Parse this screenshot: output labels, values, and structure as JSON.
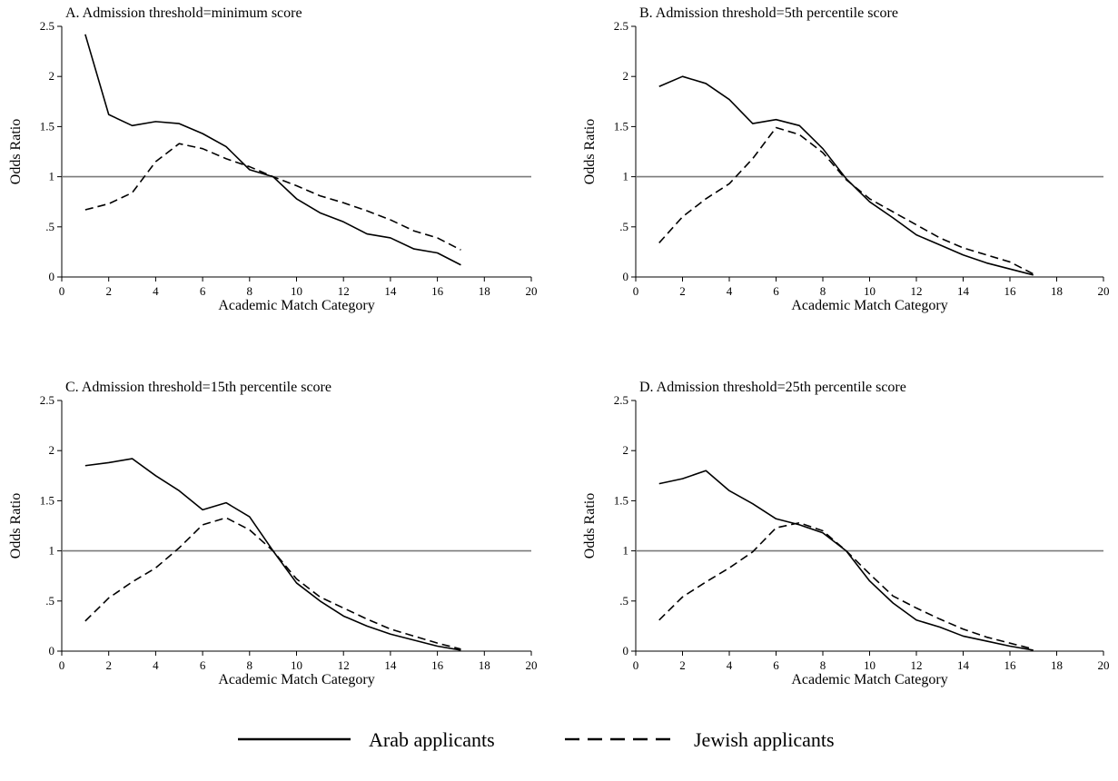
{
  "figure": {
    "legend": {
      "placement": "bottom-center",
      "items": [
        {
          "label": "Arab applicants",
          "style": "solid"
        },
        {
          "label": "Jewish applicants",
          "style": "dashed"
        }
      ]
    }
  },
  "chart_data": [
    {
      "type": "line",
      "title": "A. Admission threshold=minimum score",
      "xlabel": "Academic Match Category",
      "ylabel": "Odds Ratio",
      "xlim": [
        0,
        20
      ],
      "ylim": [
        0,
        2.5
      ],
      "xticks": [
        0,
        2,
        4,
        6,
        8,
        10,
        12,
        14,
        16,
        18,
        20
      ],
      "xtick_labels": [
        "0",
        "2",
        "4",
        "6",
        "8",
        "10",
        "12",
        "14",
        "16",
        "18",
        "20"
      ],
      "yticks": [
        0,
        0.5,
        1,
        1.5,
        2,
        2.5
      ],
      "ytick_labels": [
        "0",
        ".5",
        "1",
        "1.5",
        "2",
        "2.5"
      ],
      "reference_line": 1,
      "grid": false,
      "x": [
        1,
        2,
        3,
        4,
        5,
        6,
        7,
        8,
        9,
        10,
        11,
        12,
        13,
        14,
        15,
        16,
        17
      ],
      "series": [
        {
          "name": "Arab applicants",
          "style": "solid",
          "values": [
            2.42,
            1.62,
            1.51,
            1.55,
            1.53,
            1.43,
            1.3,
            1.07,
            1.0,
            0.78,
            0.64,
            0.55,
            0.43,
            0.39,
            0.28,
            0.24,
            0.12
          ]
        },
        {
          "name": "Jewish applicants",
          "style": "dashed",
          "values": [
            0.67,
            0.73,
            0.84,
            1.15,
            1.33,
            1.28,
            1.18,
            1.1,
            1.0,
            0.91,
            0.81,
            0.74,
            0.66,
            0.57,
            0.46,
            0.39,
            0.27
          ]
        }
      ]
    },
    {
      "type": "line",
      "title": "B. Admission threshold=5th percentile score",
      "xlabel": "Academic Match Category",
      "ylabel": "Odds Ratio",
      "xlim": [
        0,
        20
      ],
      "ylim": [
        0,
        2.5
      ],
      "xticks": [
        0,
        2,
        4,
        6,
        8,
        10,
        12,
        14,
        16,
        18,
        20
      ],
      "xtick_labels": [
        "0",
        "2",
        "4",
        "6",
        "8",
        "10",
        "12",
        "14",
        "16",
        "18",
        "20"
      ],
      "yticks": [
        0,
        0.5,
        1,
        1.5,
        2,
        2.5
      ],
      "ytick_labels": [
        "0",
        ".5",
        "1",
        "1.5",
        "2",
        "2.5"
      ],
      "reference_line": 1,
      "grid": false,
      "x": [
        1,
        2,
        3,
        4,
        5,
        6,
        7,
        8,
        9,
        10,
        11,
        12,
        13,
        14,
        15,
        16,
        17
      ],
      "series": [
        {
          "name": "Arab applicants",
          "style": "solid",
          "values": [
            1.9,
            2.0,
            1.93,
            1.77,
            1.53,
            1.57,
            1.51,
            1.28,
            0.98,
            0.75,
            0.59,
            0.42,
            0.32,
            0.22,
            0.14,
            0.08,
            0.02
          ]
        },
        {
          "name": "Jewish applicants",
          "style": "dashed",
          "values": [
            0.34,
            0.6,
            0.78,
            0.93,
            1.18,
            1.49,
            1.42,
            1.24,
            0.97,
            0.78,
            0.65,
            0.52,
            0.39,
            0.29,
            0.22,
            0.15,
            0.03
          ]
        }
      ]
    },
    {
      "type": "line",
      "title": "C. Admission threshold=15th percentile score",
      "xlabel": "Academic Match Category",
      "ylabel": "Odds Ratio",
      "xlim": [
        0,
        20
      ],
      "ylim": [
        0,
        2.5
      ],
      "xticks": [
        0,
        2,
        4,
        6,
        8,
        10,
        12,
        14,
        16,
        18,
        20
      ],
      "xtick_labels": [
        "0",
        "2",
        "4",
        "6",
        "8",
        "10",
        "12",
        "14",
        "16",
        "18",
        "20"
      ],
      "yticks": [
        0,
        0.5,
        1,
        1.5,
        2,
        2.5
      ],
      "ytick_labels": [
        "0",
        ".5",
        "1",
        "1.5",
        "2",
        "2.5"
      ],
      "reference_line": 1,
      "grid": false,
      "x": [
        1,
        2,
        3,
        4,
        5,
        6,
        7,
        8,
        9,
        10,
        11,
        12,
        13,
        14,
        15,
        16,
        17
      ],
      "series": [
        {
          "name": "Arab applicants",
          "style": "solid",
          "values": [
            1.85,
            1.88,
            1.92,
            1.75,
            1.6,
            1.41,
            1.48,
            1.34,
            1.0,
            0.68,
            0.5,
            0.35,
            0.25,
            0.17,
            0.11,
            0.05,
            0.01
          ]
        },
        {
          "name": "Jewish applicants",
          "style": "dashed",
          "values": [
            0.3,
            0.53,
            0.69,
            0.83,
            1.03,
            1.26,
            1.33,
            1.21,
            1.0,
            0.72,
            0.54,
            0.43,
            0.32,
            0.22,
            0.15,
            0.08,
            0.02
          ]
        }
      ]
    },
    {
      "type": "line",
      "title": "D. Admission threshold=25th percentile score",
      "xlabel": "Academic Match Category",
      "ylabel": "Odds Ratio",
      "xlim": [
        0,
        20
      ],
      "ylim": [
        0,
        2.5
      ],
      "xticks": [
        0,
        2,
        4,
        6,
        8,
        10,
        12,
        14,
        16,
        18,
        20
      ],
      "xtick_labels": [
        "0",
        "2",
        "4",
        "6",
        "8",
        "10",
        "12",
        "14",
        "16",
        "18",
        "20"
      ],
      "yticks": [
        0,
        0.5,
        1,
        1.5,
        2,
        2.5
      ],
      "ytick_labels": [
        "0",
        ".5",
        "1",
        "1.5",
        "2",
        "2.5"
      ],
      "reference_line": 1,
      "grid": false,
      "x": [
        1,
        2,
        3,
        4,
        5,
        6,
        7,
        8,
        9,
        10,
        11,
        12,
        13,
        14,
        15,
        16,
        17
      ],
      "series": [
        {
          "name": "Arab applicants",
          "style": "solid",
          "values": [
            1.67,
            1.72,
            1.8,
            1.6,
            1.47,
            1.32,
            1.26,
            1.18,
            1.0,
            0.7,
            0.48,
            0.31,
            0.24,
            0.15,
            0.1,
            0.05,
            0.01
          ]
        },
        {
          "name": "Jewish applicants",
          "style": "dashed",
          "values": [
            0.31,
            0.54,
            0.69,
            0.83,
            0.99,
            1.23,
            1.28,
            1.2,
            1.0,
            0.77,
            0.55,
            0.43,
            0.32,
            0.22,
            0.14,
            0.08,
            0.02
          ]
        }
      ]
    }
  ]
}
